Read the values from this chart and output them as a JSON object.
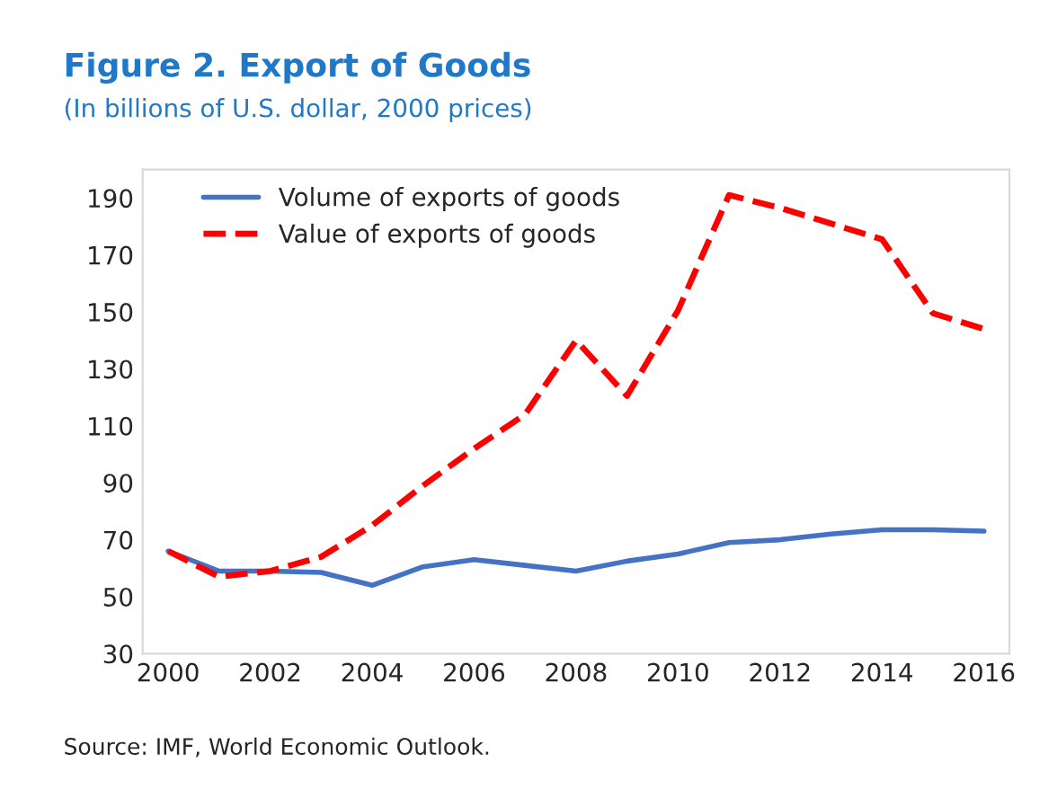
{
  "chart_data": {
    "type": "line",
    "title": "Figure 2. Export of Goods",
    "subtitle": "(In billions of U.S. dollar, 2000 prices)",
    "x": [
      2000,
      2001,
      2002,
      2003,
      2004,
      2005,
      2006,
      2007,
      2008,
      2009,
      2010,
      2011,
      2012,
      2013,
      2014,
      2015,
      2016
    ],
    "series": [
      {
        "name": "Volume of exports of goods",
        "color": "#4472c4",
        "line_style": "solid",
        "values": [
          66,
          59,
          59,
          58.5,
          54,
          60.5,
          63,
          61,
          59,
          62.5,
          65,
          69,
          70,
          72,
          73.5,
          73.5,
          73
        ]
      },
      {
        "name": "Value of exports of goods",
        "color": "#ff0000",
        "line_style": "dashed",
        "values": [
          66,
          57,
          59,
          64,
          75,
          89,
          102,
          114,
          140,
          120.5,
          150.5,
          191,
          186.5,
          181,
          175.5,
          149.5,
          144
        ]
      }
    ],
    "xlim": [
      1999.5,
      2016.5
    ],
    "xticks": [
      2000,
      2002,
      2004,
      2006,
      2008,
      2010,
      2012,
      2014,
      2016
    ],
    "ylim": [
      30,
      200
    ],
    "yticks": [
      30,
      50,
      70,
      90,
      110,
      130,
      150,
      170,
      190
    ],
    "grid": false,
    "legend": "top left",
    "marker": "none",
    "annotations": [
      "Source: IMF, World Economic Outlook."
    ]
  }
}
